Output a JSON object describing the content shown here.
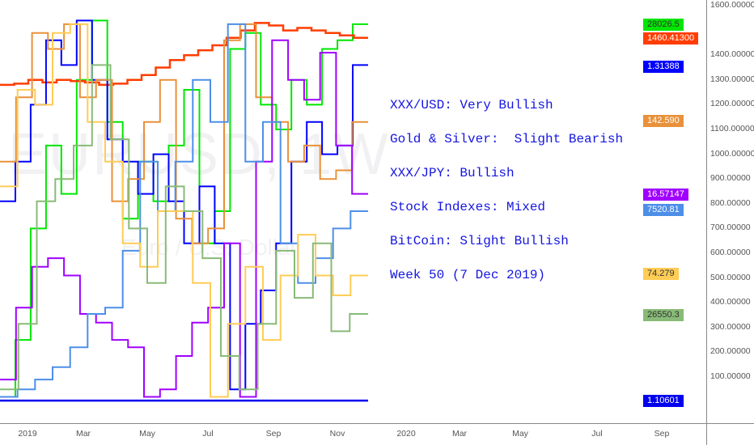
{
  "watermark": {
    "symbol": "EURUSD, 1W",
    "name": "Euro / U.S. Dollar"
  },
  "notes": [
    "XXX/USD: Very Bullish",
    "Gold & Silver:  Slight Bearish",
    "XXX/JPY: Bullish",
    "Stock Indexes: Mixed",
    "BitCoin: Slight Bullish",
    "Week 50 (7 Dec 2019)"
  ],
  "chart_data": {
    "type": "line",
    "step": true,
    "ylim": [
      0,
      1600
    ],
    "y_ticks": [
      "1600.00000",
      "1400.00000",
      "1300.00000",
      "1200.00000",
      "1100.00000",
      "1000.00000",
      "900.00000",
      "800.00000",
      "700.00000",
      "600.00000",
      "500.00000",
      "400.00000",
      "300.00000",
      "200.00000",
      "100.00000"
    ],
    "y_tick_values": [
      1600,
      1400,
      1300,
      1200,
      1100,
      1000,
      900,
      800,
      700,
      600,
      500,
      400,
      300,
      200,
      100
    ],
    "x_ticks": [
      "2019",
      "Mar",
      "May",
      "Jul",
      "Sep",
      "Nov",
      "2020",
      "Mar",
      "May",
      "Jul",
      "Sep"
    ],
    "x_range": "Dec 2018 - Dec 2019 (data), axis to Sep 2020",
    "series": [
      {
        "color": "#00e600",
        "last_label": "28026.5",
        "values": [
          20,
          250,
          700,
          1035,
          840,
          1300,
          1540,
          1130,
          740,
          970,
          810,
          1035,
          1260,
          640,
          770,
          1425,
          1490,
          1200,
          1100,
          1300,
          1200,
          1425,
          1460,
          1525
        ]
      },
      {
        "color": "#ff3d00",
        "last_label": "1460.41300",
        "values": [
          1280,
          1285,
          1300,
          1290,
          1300,
          1295,
          1290,
          1280,
          1285,
          1300,
          1320,
          1350,
          1380,
          1400,
          1420,
          1440,
          1470,
          1500,
          1530,
          1520,
          1500,
          1510,
          1500,
          1490,
          1480,
          1470
        ]
      },
      {
        "color": "#0000ff",
        "last_label": "1.31388",
        "values": [
          810,
          970,
          1200,
          1460,
          1360,
          1540,
          1300,
          1060,
          970,
          840,
          1000,
          810,
          640,
          870,
          640,
          50,
          315,
          450,
          640,
          970,
          1130,
          1000,
          1035,
          1360
        ]
      },
      {
        "color": "#e8913a",
        "last_label": "142.590",
        "values": [
          970,
          1230,
          1490,
          1425,
          1525,
          1230,
          1300,
          810,
          900,
          1130,
          1300,
          740,
          640,
          700,
          1460,
          1525,
          1230,
          1130,
          970,
          1035,
          900,
          935,
          1130
        ]
      },
      {
        "color": "#a000ff",
        "last_label": "16.57147",
        "values": [
          90,
          380,
          545,
          580,
          510,
          355,
          320,
          250,
          220,
          20,
          50,
          185,
          320,
          380,
          640,
          20,
          970,
          1460,
          1300,
          1220,
          1410,
          1035,
          840
        ]
      },
      {
        "color": "#4d8fe8",
        "last_label": "7520.81",
        "values": [
          20,
          50,
          90,
          140,
          220,
          355,
          380,
          610,
          970,
          770,
          970,
          1300,
          1130,
          1525,
          970,
          1130,
          640,
          480,
          580,
          700,
          770
        ]
      },
      {
        "color": "#ffcc55",
        "last_label": "74.279",
        "values": [
          870,
          1260,
          1200,
          1490,
          1525,
          1130,
          970,
          640,
          545,
          770,
          770,
          480,
          20,
          315,
          545,
          250,
          510,
          675,
          510,
          430,
          510
        ]
      },
      {
        "color": "#88bb77",
        "last_label": "26550.3",
        "values": [
          50,
          315,
          810,
          900,
          1035,
          1360,
          1060,
          700,
          480,
          870,
          770,
          580,
          185,
          50,
          315,
          610,
          420,
          640,
          285,
          355
        ]
      },
      {
        "color": "#0000ee",
        "last_label": "1.10601",
        "values": [
          5,
          5
        ]
      }
    ]
  }
}
